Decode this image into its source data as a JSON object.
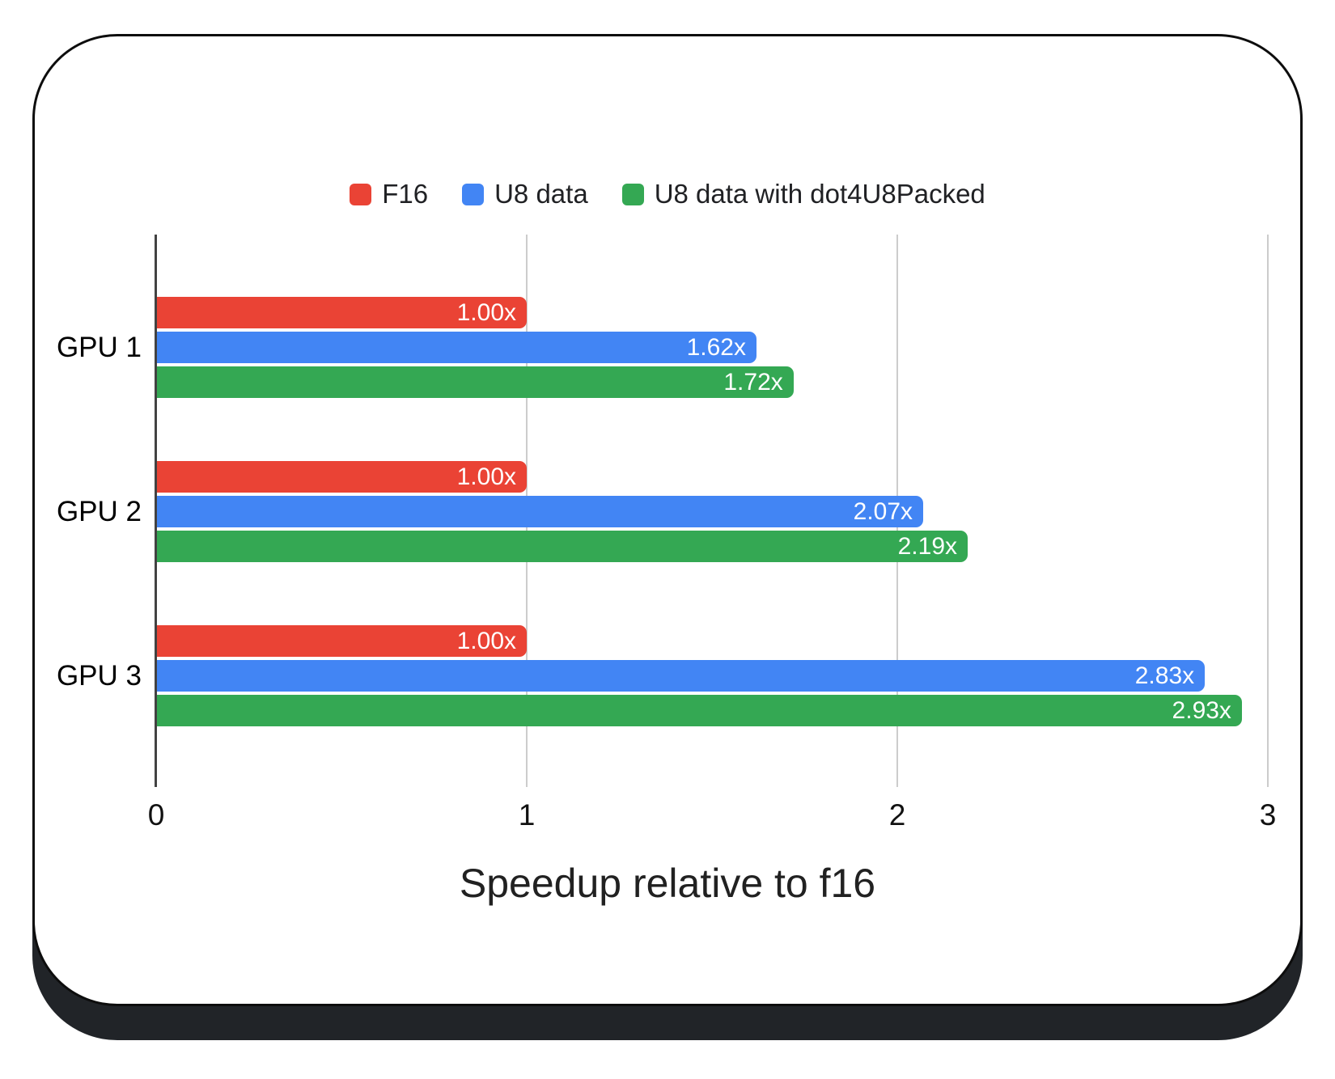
{
  "chart_data": {
    "type": "bar",
    "orientation": "horizontal",
    "xlabel": "Speedup relative to f16",
    "categories": [
      "GPU 1",
      "GPU 2",
      "GPU 3"
    ],
    "series": [
      {
        "name": "F16",
        "color": "#EA4335",
        "values": [
          1.0,
          1.0,
          1.0
        ],
        "value_labels": [
          "1.00x",
          "1.00x",
          "1.00x"
        ]
      },
      {
        "name": "U8 data",
        "color": "#4285F4",
        "values": [
          1.62,
          2.07,
          2.83
        ],
        "value_labels": [
          "1.62x",
          "2.07x",
          "2.83x"
        ]
      },
      {
        "name": "U8 data with dot4U8Packed",
        "color": "#34A853",
        "values": [
          1.72,
          2.19,
          2.93
        ],
        "value_labels": [
          "1.72x",
          "2.19x",
          "2.93x"
        ]
      }
    ],
    "x_ticks": [
      0,
      1,
      2,
      3
    ],
    "xlim": [
      0,
      3
    ],
    "legend_position": "top",
    "grid": true
  },
  "style": {
    "bar_label_color": "#ffffff",
    "axis_line_color": "#424242",
    "gridline_color": "#cccccc",
    "tick_label_color": "#111111",
    "category_label_color": "#000000",
    "legend_text_color": "#202124",
    "title_color": "#212121",
    "card_background": "#ffffff",
    "card_border_color": "#0d0d0d",
    "card_shadow_color": "#212428",
    "page_background": "#ffffff"
  }
}
